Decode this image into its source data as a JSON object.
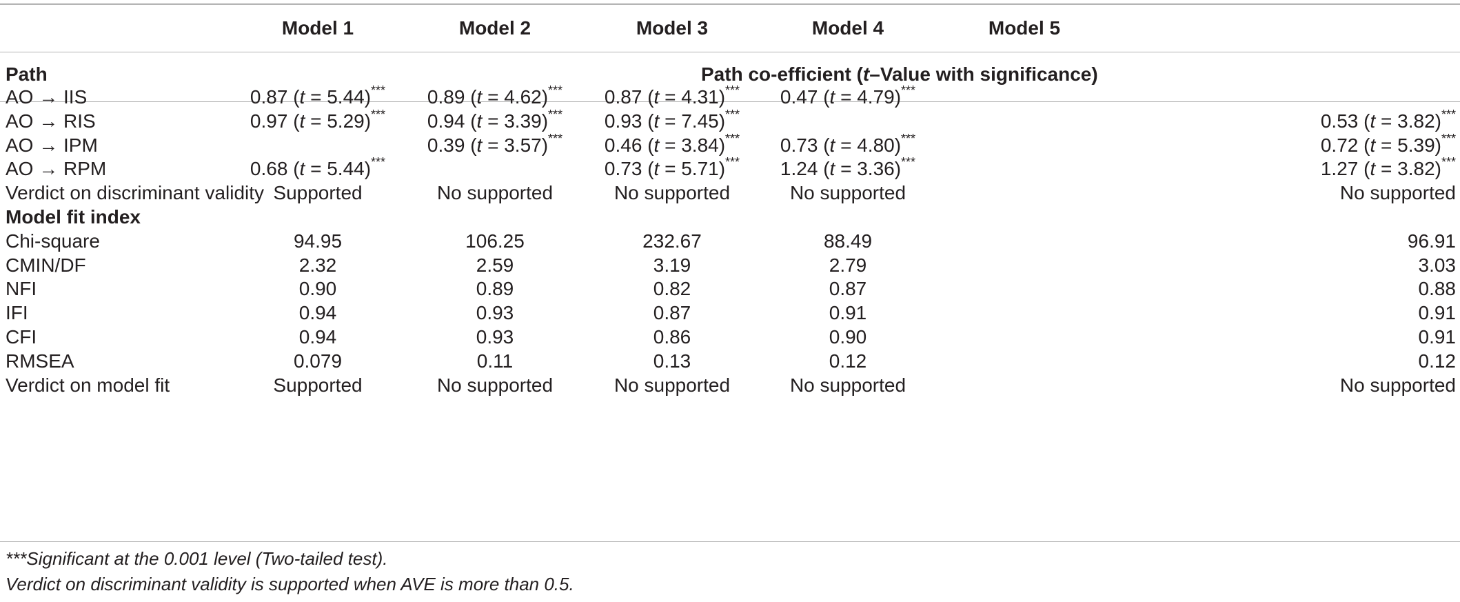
{
  "header": {
    "models": [
      "Model 1",
      "Model 2",
      "Model 3",
      "Model 4",
      "Model 5"
    ],
    "path_label": "Path",
    "path_span_prefix": "Path co-efficient (",
    "path_span_t": "t",
    "path_span_suffix": "–Value with significance)"
  },
  "path_rows": [
    {
      "label": "AO → IIS",
      "cells": [
        {
          "coef": "0.87",
          "t": "5.44"
        },
        {
          "coef": "0.89",
          "t": "4.62"
        },
        {
          "coef": "0.87",
          "t": "4.31"
        },
        {
          "coef": "0.47",
          "t": "4.79"
        },
        {
          "coef": "",
          "t": ""
        }
      ]
    },
    {
      "label": "AO → RIS",
      "cells": [
        {
          "coef": "0.97",
          "t": "5.29"
        },
        {
          "coef": "0.94",
          "t": "3.39"
        },
        {
          "coef": "0.93",
          "t": "7.45"
        },
        {
          "coef": "",
          "t": ""
        },
        {
          "coef": "0.53",
          "t": "3.82"
        }
      ]
    },
    {
      "label": "AO → IPM",
      "cells": [
        {
          "coef": "",
          "t": ""
        },
        {
          "coef": "0.39",
          "t": "3.57"
        },
        {
          "coef": "0.46",
          "t": "3.84"
        },
        {
          "coef": "0.73",
          "t": "4.80"
        },
        {
          "coef": "0.72",
          "t": "5.39"
        }
      ]
    },
    {
      "label": "AO → RPM",
      "cells": [
        {
          "coef": "0.68",
          "t": "5.44"
        },
        {
          "coef": "",
          "t": ""
        },
        {
          "coef": "0.73",
          "t": "5.71"
        },
        {
          "coef": "1.24",
          "t": "3.36"
        },
        {
          "coef": "1.27",
          "t": "3.82"
        }
      ]
    }
  ],
  "sig_marker": "***",
  "t_symbol": "t",
  "discriminant_row": {
    "label": "Verdict on discriminant validity",
    "values": [
      "Supported",
      "No supported",
      "No supported",
      "No supported",
      "No supported"
    ]
  },
  "fit_header": "Model fit index",
  "fit_rows": [
    {
      "label": "Chi-square",
      "values": [
        "94.95",
        "106.25",
        "232.67",
        "88.49",
        "96.91"
      ]
    },
    {
      "label": "CMIN/DF",
      "values": [
        "2.32",
        "2.59",
        "3.19",
        "2.79",
        "3.03"
      ]
    },
    {
      "label": "NFI",
      "values": [
        "0.90",
        "0.89",
        "0.82",
        "0.87",
        "0.88"
      ]
    },
    {
      "label": "IFI",
      "values": [
        "0.94",
        "0.93",
        "0.87",
        "0.91",
        "0.91"
      ]
    },
    {
      "label": "CFI",
      "values": [
        "0.94",
        "0.93",
        "0.86",
        "0.90",
        "0.91"
      ]
    },
    {
      "label": "RMSEA",
      "values": [
        "0.079",
        "0.11",
        "0.13",
        "0.12",
        "0.12"
      ]
    },
    {
      "label": "Verdict on model fit",
      "values": [
        "Supported",
        "No supported",
        "No supported",
        "No supported",
        "No supported"
      ]
    }
  ],
  "footnotes": {
    "sig_marker": "***",
    "sig_text": "Significant at the 0.001 level (Two-tailed test).",
    "ave_text": "Verdict on discriminant validity is supported when AVE is more than 0.5."
  }
}
